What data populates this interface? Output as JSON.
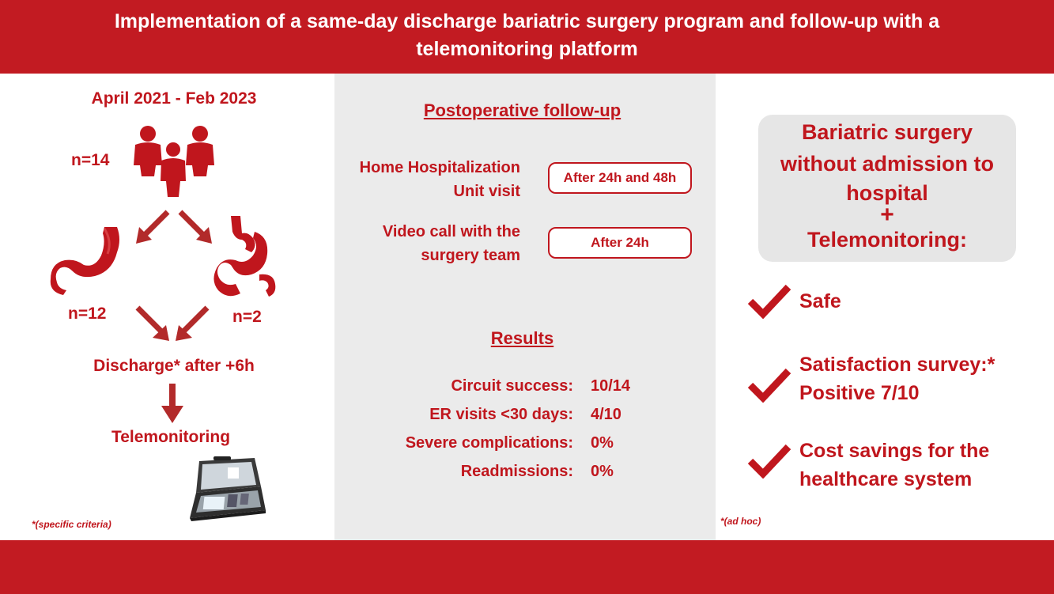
{
  "header": {
    "title_line1": "Implementation of a same-day discharge bariatric surgery program and follow-up with a",
    "title_line2": "telemonitoring platform"
  },
  "left": {
    "period": "April 2021 - Feb 2023",
    "n_total": "n=14",
    "n_sleeve": "n=12",
    "n_bypass": "n=2",
    "discharge": "Discharge* after +6h",
    "telemonitoring": "Telemonitoring",
    "footnote": "*(specific criteria)",
    "icons": [
      "people-group-icon",
      "stomach-sleeve-icon",
      "stomach-bypass-icon",
      "telemonitoring-kit-icon"
    ]
  },
  "middle": {
    "followup_title": "Postoperative follow-up",
    "rows": [
      {
        "label_line1": "Home Hospitalization",
        "label_line2": "Unit visit",
        "value": "After 24h and 48h"
      },
      {
        "label_line1": "Video call with the",
        "label_line2": "surgery team",
        "value": "After 24h"
      }
    ],
    "results_title": "Results",
    "results": [
      {
        "label": "Circuit success:",
        "value": "10/14"
      },
      {
        "label": "ER visits <30 days:",
        "value": "4/10"
      },
      {
        "label": "Severe complications:",
        "value": "0%"
      },
      {
        "label": "Readmissions:",
        "value": "0%"
      }
    ]
  },
  "right": {
    "summary_line1": "Bariatric surgery",
    "summary_line2": "without admission to",
    "summary_line3": "hospital",
    "summary_plus": "+",
    "summary_line4": "Telemonitoring:",
    "benefits": [
      {
        "line1": "Safe",
        "line2": ""
      },
      {
        "line1": "Satisfaction survey:*",
        "line2": "Positive 7/10"
      },
      {
        "line1": "Cost savings for the",
        "line2": "healthcare system"
      }
    ],
    "footnote": "*(ad hoc)"
  },
  "colors": {
    "accent": "#c21b22",
    "panel_gray": "#ebebeb",
    "box_gray": "#e6e6e6",
    "arrow": "#b22a2a"
  }
}
